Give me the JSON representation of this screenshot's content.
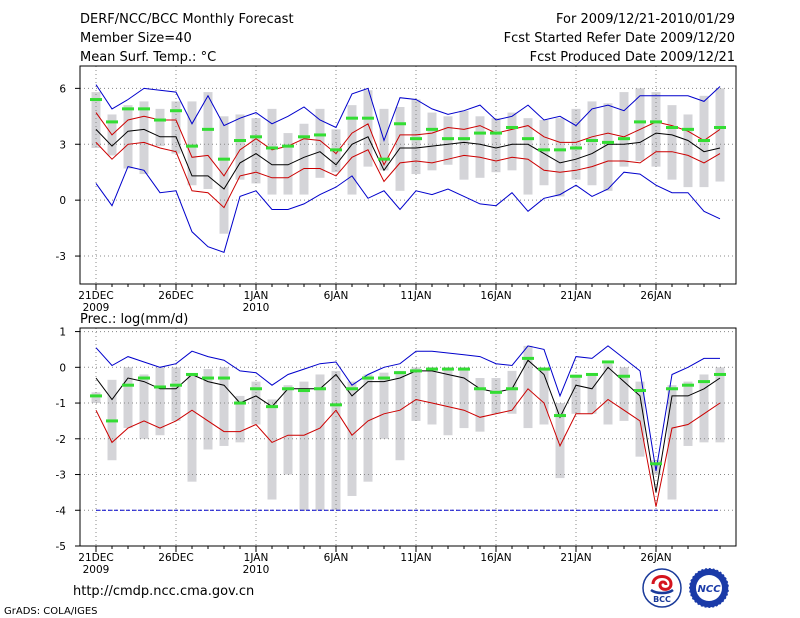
{
  "header": {
    "title": "DERF/NCC/BCC Monthly Forecast",
    "member_size": "Member Size=40",
    "variable": "Mean Surf. Temp.: °C",
    "forecast_period": "For 2009/12/21-2010/01/29",
    "fcst_started": "Fcst Started Refer Date 2009/12/20",
    "fcst_produced": "Fcst Produced Date 2009/12/21"
  },
  "footer": {
    "url": "http://cmdp.ncc.cma.gov.cn",
    "grads_credit": "GrADS: COLA/IGES",
    "logo_bcc_text": "BCC",
    "logo_ncc_text": "NCC"
  },
  "colors": {
    "envelope": "#0000cc",
    "spread": "#cc0000",
    "mean": "#000000",
    "marker": "#33dd33",
    "box": "#d4d4d8",
    "grid": "#888888",
    "ref_line": "#0000cc"
  },
  "chart_data": [
    {
      "type": "line",
      "title": "Mean Surf. Temp.: °C",
      "x": [
        1,
        2,
        3,
        4,
        5,
        6,
        7,
        8,
        9,
        10,
        11,
        12,
        13,
        14,
        15,
        16,
        17,
        18,
        19,
        20,
        21,
        22,
        23,
        24,
        25,
        26,
        27,
        28,
        29,
        30,
        31,
        32,
        33,
        34,
        35,
        36,
        37,
        38,
        39,
        40
      ],
      "x_tick_labels": [
        "21DEC",
        "26DEC",
        "1JAN",
        "6JAN",
        "11JAN",
        "16JAN",
        "21JAN",
        "26JAN"
      ],
      "x_tick_positions": [
        1,
        6,
        11,
        16,
        21,
        26,
        31,
        36
      ],
      "x_year_labels": [
        {
          "at": 1,
          "label": "2009"
        },
        {
          "at": 11,
          "label": "2010"
        }
      ],
      "ylim": [
        -4.5,
        7.2
      ],
      "y_ticks": [
        -3,
        0,
        3,
        6
      ],
      "grid": true,
      "series": [
        {
          "name": "max",
          "values": [
            0.9,
            -0.3,
            1.8,
            1.6,
            0.4,
            0.5,
            -1.7,
            -2.5,
            -2.8,
            0.2,
            0.5,
            -0.5,
            -0.5,
            -0.2,
            0.3,
            0.7,
            1.3,
            0.1,
            0.5,
            -0.5,
            0.5,
            0.3,
            0.6,
            0.2,
            -0.2,
            -0.3,
            0.4,
            -0.6,
            0.1,
            0.3,
            0.8,
            0.2,
            0.6,
            1.5,
            1.4,
            0.8,
            0.4,
            0.4,
            -0.6,
            -1.0
          ]
        },
        {
          "name": "upper_envelope",
          "values": [
            6.2,
            4.9,
            5.4,
            6.0,
            5.9,
            5.8,
            4.1,
            5.6,
            4.0,
            4.4,
            4.7,
            4.1,
            4.5,
            5.0,
            4.3,
            3.9,
            5.7,
            6.0,
            3.2,
            5.5,
            5.4,
            4.9,
            4.6,
            4.8,
            5.1,
            4.3,
            4.5,
            5.1,
            4.3,
            4.5,
            4.0,
            4.9,
            5.1,
            4.8,
            5.6,
            5.6,
            5.6,
            5.6,
            5.3,
            6.1
          ]
        },
        {
          "name": "upper_spread",
          "values": [
            4.7,
            3.5,
            4.3,
            4.5,
            4.3,
            4.3,
            2.3,
            2.4,
            1.3,
            2.7,
            3.3,
            2.7,
            2.9,
            3.3,
            3.2,
            2.5,
            3.6,
            4.1,
            1.9,
            3.5,
            3.5,
            3.6,
            3.9,
            3.8,
            4.0,
            3.6,
            3.8,
            4.0,
            3.4,
            3.1,
            3.1,
            3.4,
            3.6,
            3.4,
            3.8,
            4.2,
            4.0,
            3.7,
            3.2,
            3.8
          ]
        },
        {
          "name": "ensemble_mean",
          "values": [
            3.8,
            2.9,
            3.7,
            3.8,
            3.4,
            3.4,
            1.3,
            1.3,
            0.6,
            2.0,
            2.5,
            1.9,
            1.9,
            2.3,
            2.6,
            1.9,
            3.0,
            3.4,
            1.6,
            2.8,
            2.8,
            2.9,
            3.0,
            3.1,
            3.0,
            2.8,
            3.0,
            3.0,
            2.5,
            2.0,
            2.2,
            2.5,
            3.0,
            3.0,
            3.1,
            3.6,
            3.5,
            3.2,
            2.6,
            2.8
          ]
        },
        {
          "name": "lower_spread",
          "values": [
            3.1,
            2.2,
            3.0,
            3.1,
            2.8,
            2.6,
            0.5,
            0.4,
            -0.4,
            1.3,
            1.5,
            1.2,
            1.2,
            1.7,
            1.7,
            1.3,
            2.3,
            2.7,
            1.0,
            2.0,
            2.1,
            2.0,
            2.2,
            2.4,
            2.3,
            2.1,
            2.3,
            2.2,
            1.6,
            1.5,
            1.6,
            1.8,
            2.1,
            2.1,
            2.0,
            2.6,
            2.6,
            2.4,
            2.0,
            2.5
          ]
        },
        {
          "name": "ensemble_member",
          "values": [
            5.4,
            4.2,
            4.9,
            4.9,
            4.3,
            4.8,
            2.9,
            3.8,
            2.2,
            3.2,
            3.4,
            2.8,
            2.9,
            3.4,
            3.5,
            2.7,
            4.4,
            4.4,
            2.2,
            4.1,
            3.3,
            3.8,
            3.3,
            3.3,
            3.6,
            3.6,
            3.9,
            3.3,
            2.7,
            2.7,
            2.8,
            3.2,
            3.1,
            3.3,
            4.2,
            4.2,
            3.9,
            3.8,
            3.2,
            3.9
          ]
        },
        {
          "name": "box_top",
          "values": [
            5.8,
            4.6,
            5.1,
            5.3,
            4.9,
            5.3,
            5.3,
            5.8,
            4.5,
            4.6,
            4.4,
            4.9,
            3.6,
            4.1,
            4.9,
            3.8,
            5.1,
            5.9,
            4.9,
            5.0,
            5.4,
            4.7,
            4.5,
            4.8,
            4.5,
            4.4,
            4.7,
            4.4,
            4.3,
            4.4,
            4.9,
            5.3,
            5.2,
            5.8,
            6.0,
            5.8,
            5.1,
            4.6,
            5.6,
            6.0
          ]
        },
        {
          "name": "box_bottom",
          "values": [
            2.8,
            2.4,
            1.7,
            1.4,
            2.9,
            2.5,
            0.8,
            0.6,
            -1.8,
            1.1,
            0.9,
            0.3,
            0.3,
            0.3,
            1.2,
            1.5,
            0.3,
            1.8,
            1.6,
            0.5,
            1.4,
            1.6,
            1.9,
            1.1,
            1.2,
            1.5,
            1.6,
            0.3,
            0.8,
            0.2,
            1.1,
            0.8,
            0.5,
            1.8,
            2.1,
            1.8,
            1.1,
            0.7,
            0.7,
            1.0
          ]
        }
      ]
    },
    {
      "type": "line",
      "title": "Prec.: log(mm/d)",
      "x": [
        1,
        2,
        3,
        4,
        5,
        6,
        7,
        8,
        9,
        10,
        11,
        12,
        13,
        14,
        15,
        16,
        17,
        18,
        19,
        20,
        21,
        22,
        23,
        24,
        25,
        26,
        27,
        28,
        29,
        30,
        31,
        32,
        33,
        34,
        35,
        36,
        37,
        38,
        39,
        40
      ],
      "x_tick_labels": [
        "21DEC",
        "26DEC",
        "1JAN",
        "6JAN",
        "11JAN",
        "16JAN",
        "21JAN",
        "26JAN"
      ],
      "x_tick_positions": [
        1,
        6,
        11,
        16,
        21,
        26,
        31,
        36
      ],
      "x_year_labels": [
        {
          "at": 1,
          "label": "2009"
        },
        {
          "at": 11,
          "label": "2010"
        }
      ],
      "ylim": [
        -5,
        1.1
      ],
      "y_ticks": [
        -5,
        -4,
        -3,
        -2,
        -1,
        0,
        1
      ],
      "grid": true,
      "reference_line": -4,
      "series": [
        {
          "name": "upper_envelope",
          "values": [
            0.55,
            0.05,
            0.3,
            0.15,
            0.0,
            0.1,
            0.45,
            0.3,
            0.2,
            -0.1,
            -0.15,
            -0.5,
            -0.2,
            -0.05,
            0.1,
            0.15,
            -0.5,
            -0.2,
            0.0,
            0.1,
            0.45,
            0.45,
            0.4,
            0.35,
            0.3,
            0.1,
            0.05,
            0.6,
            0.5,
            -0.8,
            0.3,
            0.25,
            0.6,
            0.25,
            -0.1,
            -2.9,
            -0.2,
            0.0,
            0.25,
            0.25
          ]
        },
        {
          "name": "ensemble_mean",
          "values": [
            -0.3,
            -0.9,
            -0.3,
            -0.4,
            -0.6,
            -0.6,
            -0.2,
            -0.4,
            -0.5,
            -1.0,
            -0.8,
            -1.1,
            -0.6,
            -0.6,
            -0.6,
            -0.2,
            -0.8,
            -0.4,
            -0.4,
            -0.3,
            -0.1,
            -0.1,
            -0.2,
            -0.3,
            -0.6,
            -0.7,
            -0.6,
            0.2,
            -0.2,
            -1.4,
            -0.5,
            -0.6,
            0.0,
            -0.4,
            -0.8,
            -3.5,
            -0.8,
            -0.8,
            -0.6,
            -0.3
          ]
        },
        {
          "name": "lower_spread",
          "values": [
            -1.2,
            -2.1,
            -1.7,
            -1.5,
            -1.7,
            -1.5,
            -1.2,
            -1.5,
            -1.8,
            -1.8,
            -1.6,
            -2.1,
            -1.9,
            -1.9,
            -1.7,
            -1.2,
            -1.9,
            -1.5,
            -1.3,
            -1.2,
            -0.9,
            -1.0,
            -1.1,
            -1.2,
            -1.4,
            -1.3,
            -1.2,
            -0.6,
            -1.0,
            -2.2,
            -1.3,
            -1.3,
            -0.9,
            -1.2,
            -1.5,
            -3.9,
            -1.7,
            -1.6,
            -1.3,
            -1.0
          ]
        },
        {
          "name": "ensemble_member",
          "values": [
            -0.8,
            -1.5,
            -0.5,
            -0.3,
            -0.55,
            -0.5,
            -0.2,
            -0.3,
            -0.3,
            -1.0,
            -0.6,
            -1.1,
            -0.6,
            -0.65,
            -0.6,
            -1.05,
            -0.6,
            -0.3,
            -0.3,
            -0.15,
            -0.1,
            -0.05,
            -0.05,
            -0.05,
            -0.6,
            -0.7,
            -0.6,
            0.25,
            -0.05,
            -1.35,
            -0.25,
            -0.2,
            0.15,
            -0.25,
            -0.65,
            -2.7,
            -0.6,
            -0.5,
            -0.4,
            -0.2
          ]
        },
        {
          "name": "box_top",
          "values": [
            -0.7,
            -0.35,
            0.0,
            -0.2,
            0.0,
            0.0,
            -0.2,
            -0.05,
            0.0,
            -0.8,
            -0.4,
            -0.9,
            -0.5,
            -0.4,
            -0.2,
            -0.1,
            -0.4,
            -0.2,
            -0.15,
            -0.1,
            0.0,
            0.0,
            0.0,
            0.0,
            -0.3,
            -0.3,
            -0.1,
            0.6,
            0.0,
            -1.0,
            -0.2,
            -0.2,
            0.1,
            0.0,
            -0.4,
            -2.6,
            -0.5,
            -0.4,
            -0.2,
            0.0
          ]
        },
        {
          "name": "box_bottom",
          "values": [
            -1.0,
            -2.6,
            -1.7,
            -2.0,
            -1.9,
            -1.5,
            -3.2,
            -2.3,
            -2.2,
            -2.1,
            -1.6,
            -3.7,
            -3.0,
            -4.0,
            -4.0,
            -4.0,
            -3.6,
            -3.2,
            -2.0,
            -2.6,
            -1.5,
            -1.6,
            -1.9,
            -1.7,
            -1.8,
            -1.3,
            -1.3,
            -1.7,
            -1.6,
            -3.1,
            -1.3,
            -1.3,
            -1.6,
            -1.5,
            -2.5,
            -3.0,
            -3.7,
            -2.2,
            -2.1,
            -2.1
          ]
        }
      ]
    }
  ]
}
